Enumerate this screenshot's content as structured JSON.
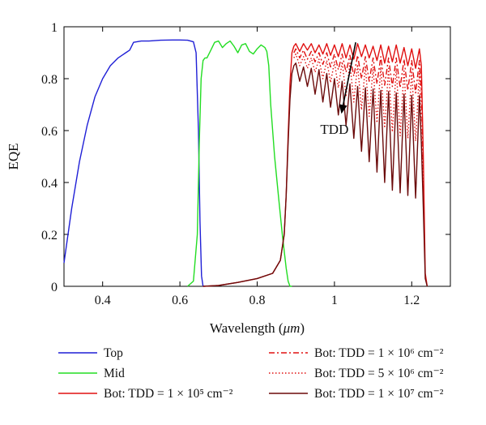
{
  "chart_data": {
    "type": "line",
    "xlabel_pre": "Wavelength (",
    "xlabel_unit": "μm",
    "xlabel_post": ")",
    "ylabel": "EQE",
    "xlim": [
      0.3,
      1.3
    ],
    "ylim": [
      0,
      1
    ],
    "xticks": [
      0.4,
      0.6,
      0.8,
      1,
      1.2
    ],
    "xtick_labels": [
      "0.4",
      "0.6",
      "0.8",
      "1",
      "1.2"
    ],
    "yticks": [
      0,
      0.2,
      0.4,
      0.6,
      0.8,
      1
    ],
    "ytick_labels": [
      "0",
      "0.2",
      "0.4",
      "0.6",
      "0.8",
      "1"
    ],
    "grid": false,
    "legend_placement": "below-plot",
    "annotation": {
      "text": "TDD",
      "arrow_from": [
        1.055,
        0.94
      ],
      "arrow_to": [
        1.018,
        0.665
      ],
      "text_at": [
        1.0,
        0.6
      ]
    },
    "series": [
      {
        "name": "Top",
        "color": "#1f1fd6",
        "dash": "solid",
        "x": [
          0.3,
          0.32,
          0.34,
          0.36,
          0.38,
          0.4,
          0.42,
          0.44,
          0.45,
          0.46,
          0.47,
          0.48,
          0.5,
          0.52,
          0.55,
          0.58,
          0.6,
          0.62,
          0.635,
          0.642,
          0.648,
          0.652,
          0.656,
          0.66
        ],
        "y": [
          0.09,
          0.3,
          0.48,
          0.62,
          0.73,
          0.8,
          0.85,
          0.88,
          0.89,
          0.9,
          0.91,
          0.94,
          0.945,
          0.945,
          0.948,
          0.949,
          0.949,
          0.948,
          0.942,
          0.9,
          0.6,
          0.25,
          0.04,
          0
        ]
      },
      {
        "name": "Mid",
        "color": "#22dd22",
        "dash": "solid",
        "x": [
          0.62,
          0.635,
          0.645,
          0.65,
          0.655,
          0.66,
          0.665,
          0.67,
          0.68,
          0.69,
          0.7,
          0.71,
          0.72,
          0.73,
          0.74,
          0.75,
          0.76,
          0.77,
          0.78,
          0.79,
          0.8,
          0.81,
          0.82,
          0.825,
          0.83,
          0.835,
          0.845,
          0.855,
          0.865,
          0.875,
          0.88,
          0.885,
          0.89
        ],
        "y": [
          0,
          0.02,
          0.2,
          0.55,
          0.8,
          0.87,
          0.88,
          0.88,
          0.91,
          0.94,
          0.945,
          0.92,
          0.935,
          0.945,
          0.925,
          0.9,
          0.93,
          0.935,
          0.905,
          0.895,
          0.915,
          0.93,
          0.92,
          0.905,
          0.85,
          0.7,
          0.5,
          0.35,
          0.2,
          0.07,
          0.02,
          0,
          0
        ]
      },
      {
        "name": "Bot: TDD = 1 × 10⁵ cm⁻²",
        "color": "#e01010",
        "dash": "solid",
        "x": [
          0.66,
          0.7,
          0.75,
          0.8,
          0.84,
          0.86,
          0.87,
          0.875,
          0.88,
          0.885,
          0.89,
          0.895,
          0.9,
          0.91,
          0.92,
          0.93,
          0.94,
          0.95,
          0.96,
          0.97,
          0.98,
          0.99,
          1.0,
          1.01,
          1.02,
          1.03,
          1.04,
          1.05,
          1.06,
          1.07,
          1.08,
          1.09,
          1.1,
          1.11,
          1.12,
          1.13,
          1.14,
          1.15,
          1.16,
          1.17,
          1.18,
          1.19,
          1.2,
          1.21,
          1.22,
          1.225,
          1.23,
          1.235,
          1.24
        ],
        "y": [
          0,
          0.003,
          0.015,
          0.03,
          0.05,
          0.1,
          0.2,
          0.35,
          0.58,
          0.78,
          0.9,
          0.925,
          0.935,
          0.905,
          0.935,
          0.91,
          0.935,
          0.9,
          0.93,
          0.895,
          0.935,
          0.89,
          0.93,
          0.885,
          0.935,
          0.88,
          0.93,
          0.875,
          0.935,
          0.885,
          0.93,
          0.88,
          0.925,
          0.87,
          0.93,
          0.86,
          0.925,
          0.865,
          0.93,
          0.86,
          0.92,
          0.85,
          0.915,
          0.84,
          0.915,
          0.85,
          0.5,
          0.05,
          0
        ]
      },
      {
        "name": "Bot: TDD = 1 × 10⁶ cm⁻²",
        "color": "#e01010",
        "dash": "dashdot",
        "x": [
          0.895,
          0.9,
          0.91,
          0.92,
          0.93,
          0.94,
          0.95,
          0.96,
          0.97,
          0.98,
          0.99,
          1.0,
          1.01,
          1.02,
          1.03,
          1.04,
          1.05,
          1.06,
          1.07,
          1.08,
          1.09,
          1.1,
          1.11,
          1.12,
          1.13,
          1.14,
          1.15,
          1.16,
          1.17,
          1.18,
          1.19,
          1.2,
          1.21,
          1.22,
          1.225,
          1.23
        ],
        "y": [
          0.9,
          0.915,
          0.88,
          0.91,
          0.875,
          0.905,
          0.865,
          0.9,
          0.855,
          0.9,
          0.845,
          0.895,
          0.835,
          0.895,
          0.825,
          0.89,
          0.81,
          0.89,
          0.8,
          0.885,
          0.79,
          0.88,
          0.78,
          0.885,
          0.775,
          0.88,
          0.77,
          0.88,
          0.765,
          0.875,
          0.755,
          0.87,
          0.745,
          0.87,
          0.75,
          0.45
        ]
      },
      {
        "name": "Bot: TDD = 5 × 10⁶ cm⁻²",
        "color": "#e01010",
        "dash": "dotted",
        "x": [
          0.895,
          0.9,
          0.91,
          0.92,
          0.93,
          0.94,
          0.95,
          0.96,
          0.97,
          0.98,
          0.99,
          1.0,
          1.01,
          1.02,
          1.03,
          1.04,
          1.05,
          1.06,
          1.07,
          1.08,
          1.09,
          1.1,
          1.11,
          1.12,
          1.13,
          1.14,
          1.15,
          1.16,
          1.17,
          1.18,
          1.19,
          1.2,
          1.21,
          1.22,
          1.225,
          1.23
        ],
        "y": [
          0.88,
          0.895,
          0.85,
          0.885,
          0.84,
          0.88,
          0.825,
          0.875,
          0.8,
          0.87,
          0.785,
          0.865,
          0.765,
          0.865,
          0.735,
          0.86,
          0.71,
          0.855,
          0.68,
          0.85,
          0.655,
          0.845,
          0.63,
          0.845,
          0.61,
          0.84,
          0.595,
          0.84,
          0.58,
          0.835,
          0.57,
          0.83,
          0.56,
          0.83,
          0.57,
          0.4
        ]
      },
      {
        "name": "Bot: TDD = 1 × 10⁷ cm⁻²",
        "color": "#6b0a0a",
        "dash": "solid",
        "x": [
          0.66,
          0.7,
          0.75,
          0.8,
          0.84,
          0.86,
          0.87,
          0.875,
          0.88,
          0.885,
          0.89,
          0.895,
          0.9,
          0.91,
          0.92,
          0.93,
          0.94,
          0.95,
          0.96,
          0.97,
          0.98,
          0.99,
          1.0,
          1.01,
          1.02,
          1.03,
          1.04,
          1.05,
          1.06,
          1.07,
          1.08,
          1.09,
          1.1,
          1.11,
          1.12,
          1.13,
          1.14,
          1.15,
          1.16,
          1.17,
          1.18,
          1.19,
          1.2,
          1.21,
          1.22,
          1.225,
          1.23,
          1.235,
          1.24
        ],
        "y": [
          0,
          0.003,
          0.015,
          0.03,
          0.05,
          0.1,
          0.2,
          0.35,
          0.55,
          0.72,
          0.82,
          0.85,
          0.86,
          0.79,
          0.845,
          0.77,
          0.84,
          0.74,
          0.835,
          0.71,
          0.82,
          0.69,
          0.8,
          0.66,
          0.79,
          0.62,
          0.78,
          0.57,
          0.77,
          0.52,
          0.765,
          0.48,
          0.76,
          0.44,
          0.755,
          0.4,
          0.75,
          0.37,
          0.745,
          0.36,
          0.74,
          0.35,
          0.735,
          0.34,
          0.735,
          0.55,
          0.3,
          0.03,
          0
        ]
      }
    ]
  }
}
